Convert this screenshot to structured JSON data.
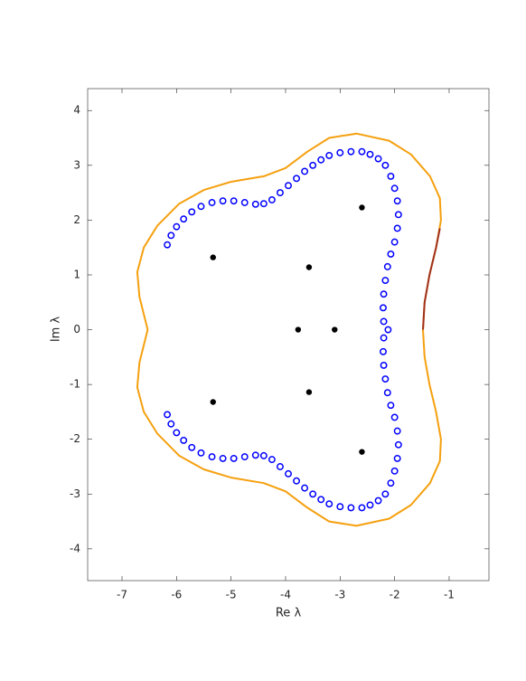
{
  "chart_data": {
    "type": "scatter",
    "xlabel": "Re λ",
    "ylabel": "Im λ",
    "xlim": [
      -7.63,
      -0.27
    ],
    "ylim": [
      -4.58,
      4.4
    ],
    "xticks": [
      -7,
      -6,
      -5,
      -4,
      -3,
      -2,
      -1
    ],
    "yticks": [
      -4,
      -3,
      -2,
      -1,
      0,
      1,
      2,
      3,
      4
    ],
    "series": [
      {
        "style": "line",
        "color": "#f5a00f",
        "x": [
          -1.48,
          -1.45,
          -1.36,
          -1.24,
          -1.15,
          -1.17,
          -1.35,
          -1.7,
          -2.1,
          -2.7,
          -3.2,
          -3.6,
          -4.0,
          -4.4,
          -5.0,
          -5.5,
          -5.95,
          -6.35,
          -6.6,
          -6.72,
          -6.68,
          -6.53,
          -6.68,
          -6.72,
          -6.6,
          -6.35,
          -5.95,
          -5.5,
          -5.0,
          -4.4,
          -4.0,
          -3.6,
          -3.2,
          -2.7,
          -2.1,
          -1.7,
          -1.35,
          -1.17,
          -1.15,
          -1.24,
          -1.36,
          -1.45,
          -1.48
        ],
        "values": [
          0,
          0.5,
          1.0,
          1.5,
          2.0,
          2.4,
          2.8,
          3.2,
          3.45,
          3.58,
          3.5,
          3.25,
          2.95,
          2.8,
          2.7,
          2.55,
          2.3,
          1.9,
          1.5,
          1.05,
          0.6,
          0,
          -0.6,
          -1.05,
          -1.5,
          -1.9,
          -2.3,
          -2.55,
          -2.7,
          -2.8,
          -2.95,
          -3.25,
          -3.5,
          -3.58,
          -3.45,
          -3.2,
          -2.8,
          -2.4,
          -2.0,
          -1.5,
          -1.0,
          -0.5,
          0
        ]
      },
      {
        "style": "line",
        "color": "#a0301c",
        "x": [
          -1.48,
          -1.45,
          -1.36,
          -1.24,
          -1.17
        ],
        "values": [
          0,
          0.5,
          1.0,
          1.5,
          1.85
        ]
      },
      {
        "style": "circle",
        "color": "#0000ff",
        "x": [
          -6.17,
          -6.1,
          -6.0,
          -5.87,
          -5.72,
          -5.55,
          -5.35,
          -5.15,
          -4.95,
          -4.75,
          -4.55,
          -4.4,
          -4.25,
          -4.1,
          -3.95,
          -3.8,
          -3.65,
          -3.5,
          -3.35,
          -3.2,
          -3.0,
          -2.8,
          -2.6,
          -2.45,
          -2.3,
          -2.17,
          -2.07,
          -2.0,
          -1.95,
          -1.93,
          -1.95,
          -2.0,
          -2.07,
          -2.13,
          -2.17,
          -2.2,
          -2.21,
          -2.2,
          -2.12,
          -2.2,
          -2.21,
          -2.2,
          -2.17,
          -2.13,
          -2.07,
          -2.0,
          -1.95,
          -1.93,
          -1.95,
          -2.0,
          -2.07,
          -2.17,
          -2.3,
          -2.45,
          -2.6,
          -2.8,
          -3.0,
          -3.2,
          -3.35,
          -3.5,
          -3.65,
          -3.8,
          -3.95,
          -4.1,
          -4.25,
          -4.4,
          -4.55,
          -4.75,
          -4.95,
          -5.15,
          -5.35,
          -5.55,
          -5.72,
          -5.87,
          -6.0,
          -6.1,
          -6.17
        ],
        "values": [
          1.55,
          1.72,
          1.88,
          2.02,
          2.15,
          2.25,
          2.32,
          2.35,
          2.35,
          2.32,
          2.29,
          2.3,
          2.37,
          2.5,
          2.63,
          2.76,
          2.89,
          3.0,
          3.1,
          3.18,
          3.23,
          3.25,
          3.25,
          3.2,
          3.12,
          3.0,
          2.8,
          2.58,
          2.35,
          2.1,
          1.85,
          1.6,
          1.38,
          1.15,
          0.9,
          0.65,
          0.4,
          0.15,
          0,
          -0.15,
          -0.4,
          -0.65,
          -0.9,
          -1.15,
          -1.38,
          -1.6,
          -1.85,
          -2.1,
          -2.35,
          -2.58,
          -2.8,
          -3.0,
          -3.12,
          -3.2,
          -3.25,
          -3.25,
          -3.23,
          -3.18,
          -3.1,
          -3.0,
          -2.89,
          -2.76,
          -2.63,
          -2.5,
          -2.37,
          -2.3,
          -2.29,
          -2.32,
          -2.35,
          -2.35,
          -2.32,
          -2.25,
          -2.15,
          -2.02,
          -1.88,
          -1.72,
          -1.55
        ]
      },
      {
        "style": "dot",
        "color": "#000000",
        "x": [
          -2.6,
          -5.33,
          -3.57,
          -3.77,
          -3.1,
          -3.57,
          -5.33,
          -2.6
        ],
        "values": [
          2.23,
          1.32,
          1.14,
          0,
          0,
          -1.14,
          -1.32,
          -2.23
        ]
      }
    ]
  }
}
